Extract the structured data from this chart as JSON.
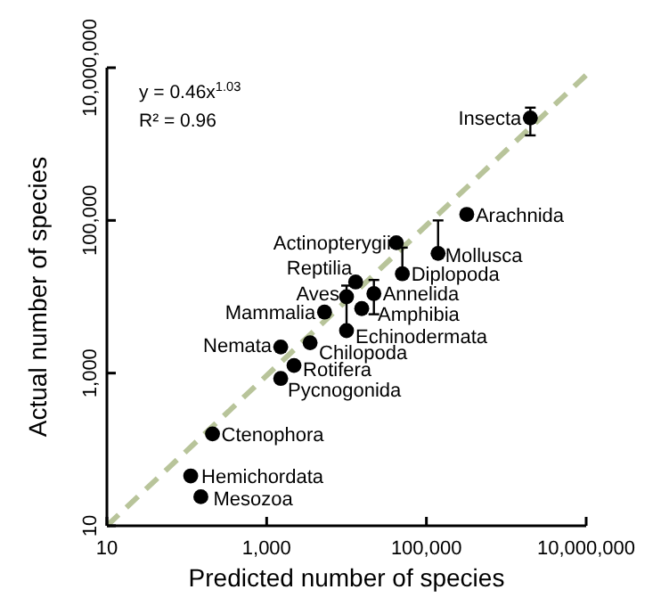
{
  "chart_data": {
    "type": "scatter",
    "xlabel": "Predicted number of species",
    "ylabel": "Actual number of species",
    "log": "xy",
    "xlim": [
      10,
      10000000
    ],
    "ylim": [
      10,
      10000000
    ],
    "xticks": [
      10,
      {
        "value": 1000,
        "label": "1,000"
      },
      {
        "value": 100000,
        "label": "100,000"
      },
      {
        "value": 10000000,
        "label": "10,000,000"
      }
    ],
    "yticks": [
      10,
      {
        "value": 1000,
        "label": "1,000"
      },
      {
        "value": 100000,
        "label": "100,000"
      },
      {
        "value": 10000000,
        "label": "10,000,000"
      }
    ],
    "grid": false,
    "series": [
      {
        "color": "#000000",
        "marker": "circle",
        "x": [
          2000000,
          320000,
          42000,
          140000,
          50000,
          13000,
          10000,
          22000,
          15500,
          10000,
          5300,
          1500,
          3500,
          2200,
          1500,
          210,
          112,
          150
        ],
        "values": [
          2200000,
          120000,
          51000,
          37000,
          20000,
          15600,
          10000,
          11000,
          7000,
          3600,
          6300,
          2200,
          2500,
          1260,
          850,
          160,
          45,
          24
        ],
        "errors": [
          [
            1300000,
            3000000
          ],
          null,
          null,
          [
            37000,
            100000
          ],
          [
            20000,
            44000
          ],
          null,
          [
            3600,
            14000
          ],
          [
            5900,
            16600
          ],
          null,
          null,
          null,
          null,
          null,
          null,
          null,
          null,
          null,
          null
        ]
      },
      {
        "type": "line",
        "color": "#b8c49a",
        "line_style": "dashed",
        "marker": "none",
        "x": [
          10,
          10000000
        ],
        "values": [
          10,
          8000000
        ]
      }
    ],
    "annotations": [
      "y = 0.46x$^{1.03}$",
      "R² = 0.96",
      {
        "text": "Insecta",
        "x": 2000000,
        "y": 2200000
      },
      {
        "text": "Arachnida",
        "x": 320000,
        "y": 120000
      },
      {
        "text": "Actinopterygii",
        "x": 42000,
        "y": 51000
      },
      {
        "text": "Mollusca",
        "x": 140000,
        "y": 37000
      },
      {
        "text": "Diplopoda",
        "x": 50000,
        "y": 20000
      },
      {
        "text": "Reptilia",
        "x": 13000,
        "y": 15600
      },
      {
        "text": "Aves",
        "x": 10000,
        "y": 10000
      },
      {
        "text": "Annelida",
        "x": 22000,
        "y": 11000
      },
      {
        "text": "Amphibia",
        "x": 15500,
        "y": 7000
      },
      {
        "text": "Echinodermata",
        "x": 10000,
        "y": 3600
      },
      {
        "text": "Mammalia",
        "x": 5300,
        "y": 6300
      },
      {
        "text": "Nemata",
        "x": 1500,
        "y": 2200
      },
      {
        "text": "Chilopoda",
        "x": 3500,
        "y": 2500
      },
      {
        "text": "Rotifera",
        "x": 2200,
        "y": 1260
      },
      {
        "text": "Pycnogonida",
        "x": 1500,
        "y": 850
      },
      {
        "text": "Ctenophora",
        "x": 210,
        "y": 160
      },
      {
        "text": "Hemichordata",
        "x": 112,
        "y": 45
      },
      {
        "text": "Mesozoa",
        "x": 150,
        "y": 24
      }
    ]
  }
}
